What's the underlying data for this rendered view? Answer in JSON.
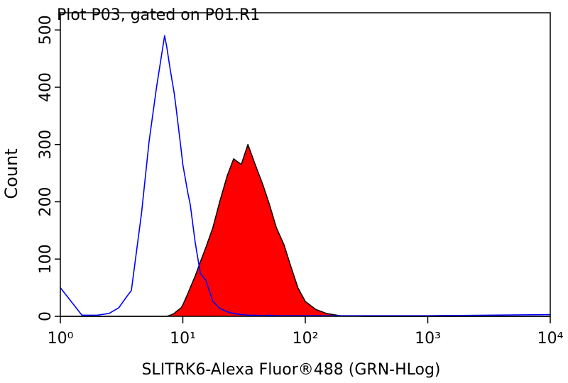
{
  "chart_data": {
    "type": "histogram-overlay",
    "title": "Plot P03, gated on P01.R1",
    "xlabel": "SLITRK6-Alexa Fluor®488 (GRN-HLog)",
    "ylabel": "Count",
    "xscale": "log",
    "xlim": [
      1,
      10000
    ],
    "ylim": [
      0,
      530
    ],
    "xticks": [
      {
        "value": 1,
        "label": "10⁰"
      },
      {
        "value": 10,
        "label": "10¹"
      },
      {
        "value": 100,
        "label": "10²"
      },
      {
        "value": 1000,
        "label": "10³"
      },
      {
        "value": 10000,
        "label": "10⁴"
      }
    ],
    "yticks": [
      0,
      100,
      200,
      300,
      400,
      500
    ],
    "x": [
      1,
      1.5,
      2,
      2.5,
      3,
      3.5,
      3.8,
      4.6,
      5.3,
      6.1,
      7.1,
      7.4,
      7.9,
      8.5,
      8.8,
      9.7,
      10,
      11,
      11.5,
      12.6,
      13.9,
      15.4,
      17.6,
      20,
      23,
      26,
      30,
      34,
      39,
      45,
      51,
      58,
      67,
      76,
      87,
      100,
      122,
      149,
      194,
      300,
      1000,
      3000,
      10000
    ],
    "series": [
      {
        "color": "#000000",
        "fill": "#ff0000",
        "values": [
          0,
          0,
          0,
          0,
          0,
          0,
          0,
          0,
          0,
          0,
          0,
          0,
          2,
          5,
          8,
          15,
          20,
          40,
          50,
          70,
          95,
          120,
          155,
          200,
          245,
          275,
          265,
          300,
          265,
          230,
          195,
          155,
          125,
          88,
          50,
          26,
          12,
          5,
          1,
          0,
          0,
          0,
          0
        ]
      },
      {
        "color": "#0000ff",
        "values": [
          50,
          2,
          2,
          5,
          15,
          35,
          45,
          180,
          305,
          400,
          490,
          470,
          430,
          390,
          365,
          290,
          265,
          215,
          195,
          130,
          75,
          63,
          26,
          14,
          8,
          5,
          3,
          2,
          2,
          1,
          2,
          1,
          1,
          1,
          1,
          1,
          1,
          1,
          1,
          1,
          1,
          2,
          3
        ]
      }
    ]
  }
}
